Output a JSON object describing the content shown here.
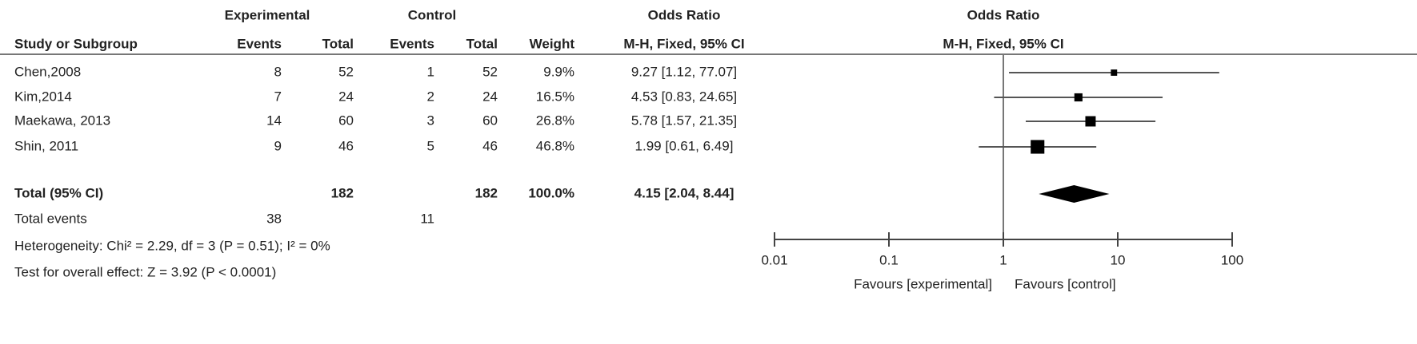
{
  "chart_data": {
    "type": "forest",
    "headers": {
      "group1": "Experimental",
      "group2": "Control",
      "effect": "Odds Ratio",
      "study": "Study or Subgroup",
      "events": "Events",
      "total": "Total",
      "weight": "Weight",
      "method": "M-H, Fixed, 95% CI"
    },
    "studies": [
      {
        "name": "Chen,2008",
        "exp_events": 8,
        "exp_total": 52,
        "ctrl_events": 1,
        "ctrl_total": 52,
        "weight": 9.9,
        "weight_label": "9.9%",
        "or": 9.27,
        "lower": 1.12,
        "upper": 77.07,
        "ci_label": "9.27 [1.12, 77.07]"
      },
      {
        "name": "Kim,2014",
        "exp_events": 7,
        "exp_total": 24,
        "ctrl_events": 2,
        "ctrl_total": 24,
        "weight": 16.5,
        "weight_label": "16.5%",
        "or": 4.53,
        "lower": 0.83,
        "upper": 24.65,
        "ci_label": "4.53 [0.83, 24.65]"
      },
      {
        "name": "Maekawa, 2013",
        "exp_events": 14,
        "exp_total": 60,
        "ctrl_events": 3,
        "ctrl_total": 60,
        "weight": 26.8,
        "weight_label": "26.8%",
        "or": 5.78,
        "lower": 1.57,
        "upper": 21.35,
        "ci_label": "5.78 [1.57, 21.35]"
      },
      {
        "name": "Shin, 2011",
        "exp_events": 9,
        "exp_total": 46,
        "ctrl_events": 5,
        "ctrl_total": 46,
        "weight": 46.8,
        "weight_label": "46.8%",
        "or": 1.99,
        "lower": 0.61,
        "upper": 6.49,
        "ci_label": "1.99 [0.61, 6.49]"
      }
    ],
    "total": {
      "name": "Total (95% CI)",
      "exp_total": 182,
      "ctrl_total": 182,
      "weight": 100,
      "weight_label": "100.0%",
      "or": 4.15,
      "lower": 2.04,
      "upper": 8.44,
      "ci_label": "4.15 [2.04, 8.44]"
    },
    "total_events": {
      "label": "Total events",
      "exp": 38,
      "ctrl": 11
    },
    "heterogeneity": "Heterogeneity: Chi² = 2.29, df = 3 (P = 0.51); I² = 0%",
    "overall_effect": "Test for overall effect: Z = 3.92 (P < 0.0001)",
    "log_scale": true,
    "xlim": [
      0.01,
      100
    ],
    "xticks": [
      0.01,
      0.1,
      1,
      10,
      100
    ],
    "xlabel_left": "Favours [experimental]",
    "xlabel_right": "Favours [control]",
    "color": "#000000"
  }
}
